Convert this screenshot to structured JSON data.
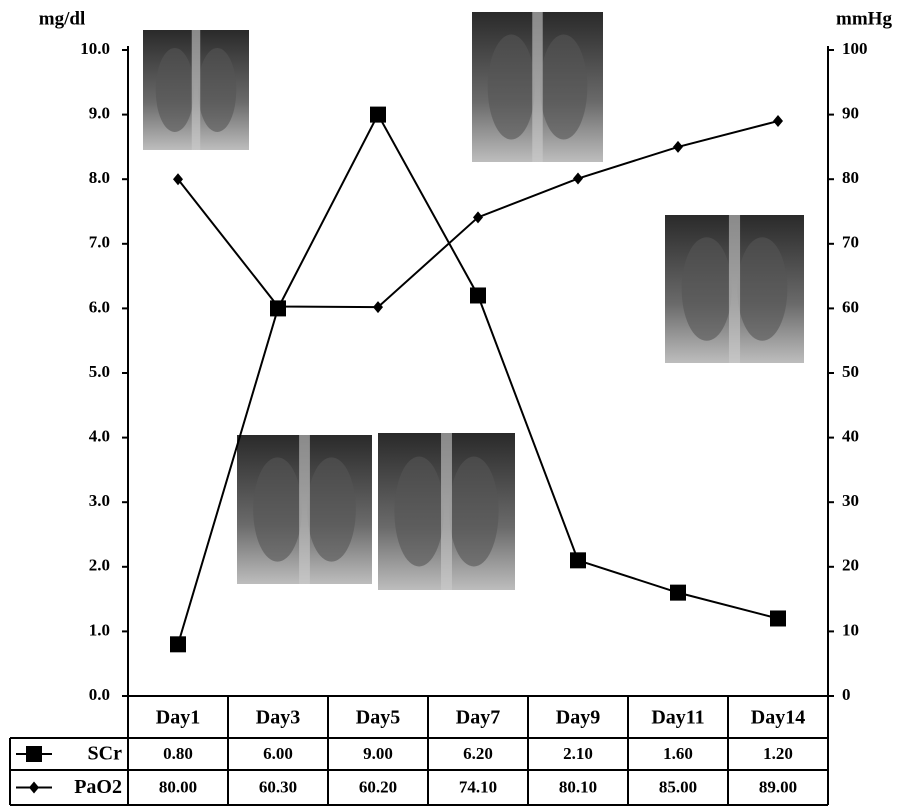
{
  "chart_data": {
    "type": "line",
    "y_label": "mg/dl",
    "y2_label": "mmHg",
    "categories": [
      "Day1",
      "Day3",
      "Day5",
      "Day7",
      "Day9",
      "Day11",
      "Day14"
    ],
    "series": [
      {
        "name": "SCr",
        "color": "#000000",
        "marker": "square",
        "values": [
          0.8,
          6.0,
          9.0,
          6.2,
          2.1,
          1.6,
          1.2
        ],
        "value_labels": [
          "0.80",
          "6.00",
          "9.00",
          "6.20",
          "2.10",
          "1.60",
          "1.20"
        ]
      },
      {
        "name": "PaO2",
        "color": "#000000",
        "marker": "diamond",
        "axis": "y2",
        "values": [
          80.0,
          60.3,
          60.2,
          74.1,
          80.1,
          85.0,
          89.0
        ],
        "value_labels": [
          "80.00",
          "60.30",
          "60.20",
          "74.10",
          "80.10",
          "85.00",
          "89.00"
        ]
      }
    ],
    "ylim": [
      0,
      10
    ],
    "yticks": [
      {
        "value": 0,
        "label": "0.0"
      },
      {
        "value": 1,
        "label": "1.0"
      },
      {
        "value": 2,
        "label": "2.0"
      },
      {
        "value": 3,
        "label": "3.0"
      },
      {
        "value": 4,
        "label": "4.0"
      },
      {
        "value": 5,
        "label": "5.0"
      },
      {
        "value": 6,
        "label": "6.0"
      },
      {
        "value": 7,
        "label": "7.0"
      },
      {
        "value": 8,
        "label": "8.0"
      },
      {
        "value": 9,
        "label": "9.0"
      },
      {
        "value": 10,
        "label": "10.0"
      }
    ],
    "y2lim": [
      0,
      100
    ],
    "y2ticks": [
      0,
      10,
      20,
      30,
      40,
      50,
      60,
      70,
      80,
      90,
      100
    ],
    "grid": false
  }
}
